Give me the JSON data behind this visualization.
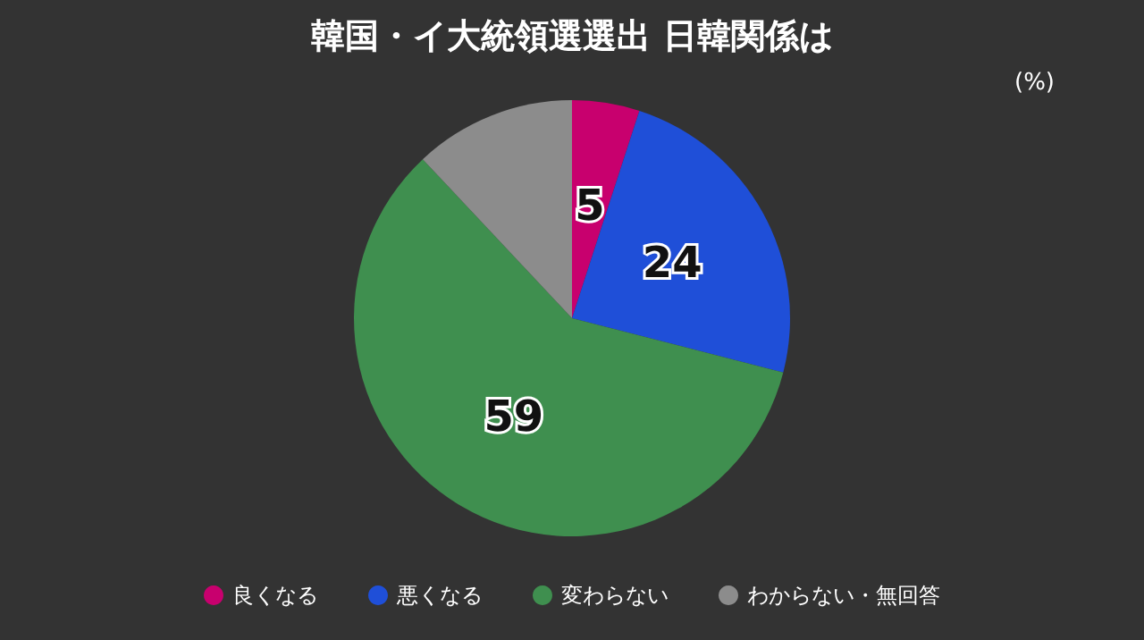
{
  "chart_data": {
    "type": "pie",
    "title": "韓国・イ大統領選選出 日韓関係は",
    "annotations": [
      "(%)"
    ],
    "categories": [
      "良くなる",
      "悪くなる",
      "変わらない",
      "わからない・無回答"
    ],
    "values": [
      5,
      24,
      59,
      12
    ],
    "value_labels": [
      "5",
      "24",
      "59",
      null
    ],
    "colors": [
      "#c8006e",
      "#1f4fd8",
      "#3f8f4f",
      "#8c8c8c"
    ],
    "legend": "bottom"
  }
}
